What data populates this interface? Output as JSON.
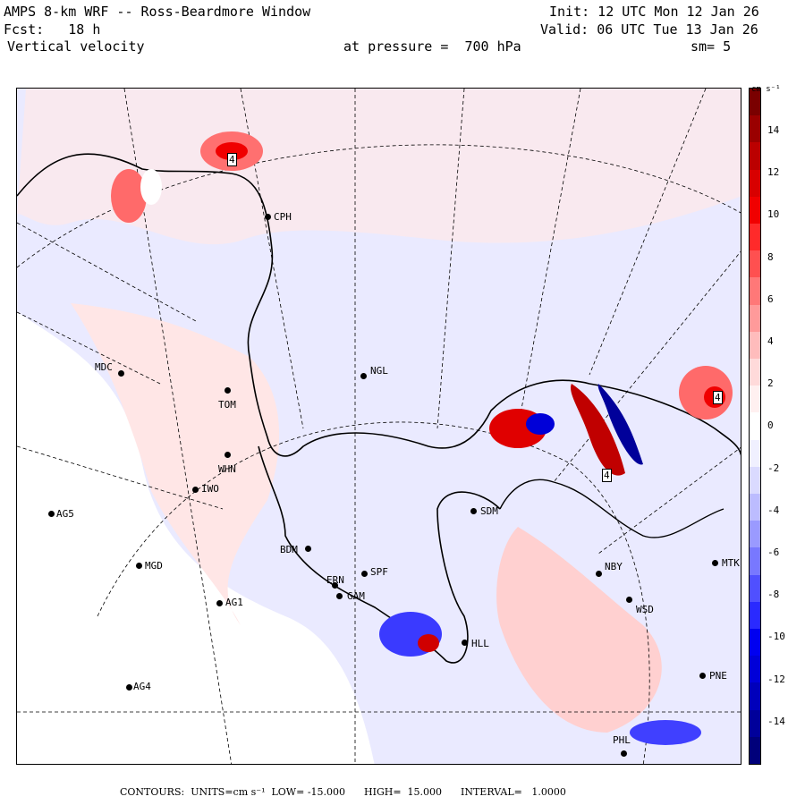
{
  "header": {
    "title": "AMPS 8-km WRF -- Ross-Beardmore Window",
    "forecast": "Fcst:   18 h",
    "variable": "Vertical velocity",
    "level": "at pressure =  700 hPa",
    "init": "Init: 12 UTC Mon 12 Jan 26",
    "valid": "Valid: 06 UTC Tue 13 Jan 26",
    "smoothing": "sm= 5"
  },
  "stations": [
    {
      "id": "CPH",
      "label": "CPH"
    },
    {
      "id": "NGL",
      "label": "NGL"
    },
    {
      "id": "MDC",
      "label": "MDC"
    },
    {
      "id": "TOM",
      "label": "TOM"
    },
    {
      "id": "WHN",
      "label": "WHN"
    },
    {
      "id": "IWO",
      "label": "IWO"
    },
    {
      "id": "AG5",
      "label": "AG5"
    },
    {
      "id": "SDM",
      "label": "SDM"
    },
    {
      "id": "BDM",
      "label": "BDM"
    },
    {
      "id": "MGD",
      "label": "MGD"
    },
    {
      "id": "SPF",
      "label": "SPF"
    },
    {
      "id": "ERN",
      "label": "ERN"
    },
    {
      "id": "GAM",
      "label": "GAM"
    },
    {
      "id": "AG1",
      "label": "AG1"
    },
    {
      "id": "NBY",
      "label": "NBY"
    },
    {
      "id": "MTK",
      "label": "MTK"
    },
    {
      "id": "WSD",
      "label": "WSD"
    },
    {
      "id": "HLL",
      "label": "HLL"
    },
    {
      "id": "AG4",
      "label": "AG4"
    },
    {
      "id": "PNE",
      "label": "PNE"
    },
    {
      "id": "PHL",
      "label": "PHL"
    }
  ],
  "extrema_markers": [
    "4",
    "4",
    "4"
  ],
  "colorbar": {
    "units_label": "cm s⁻¹",
    "labels": [
      "14",
      "12",
      "10",
      "8",
      "6",
      "4",
      "2",
      "0",
      "-2",
      "-4",
      "-6",
      "-8",
      "-10",
      "-12",
      "-14"
    ],
    "colors": [
      "#7a0000",
      "#9a0000",
      "#bb0000",
      "#d80000",
      "#f00000",
      "#ff2a2a",
      "#ff5050",
      "#ff7878",
      "#ff9a9a",
      "#ffbcbc",
      "#ffdada",
      "#fff0f0",
      "#ffffff",
      "#f0f0ff",
      "#dadaff",
      "#bcbcff",
      "#9a9aff",
      "#7878ff",
      "#5050ff",
      "#2a2aff",
      "#0000f0",
      "#0000d8",
      "#0000bb",
      "#00009a",
      "#00007a"
    ]
  },
  "footer": "CONTOURS:  UNITS=cm s⁻¹  LOW= -15.000      HIGH=  15.000      INTERVAL=   1.0000"
}
